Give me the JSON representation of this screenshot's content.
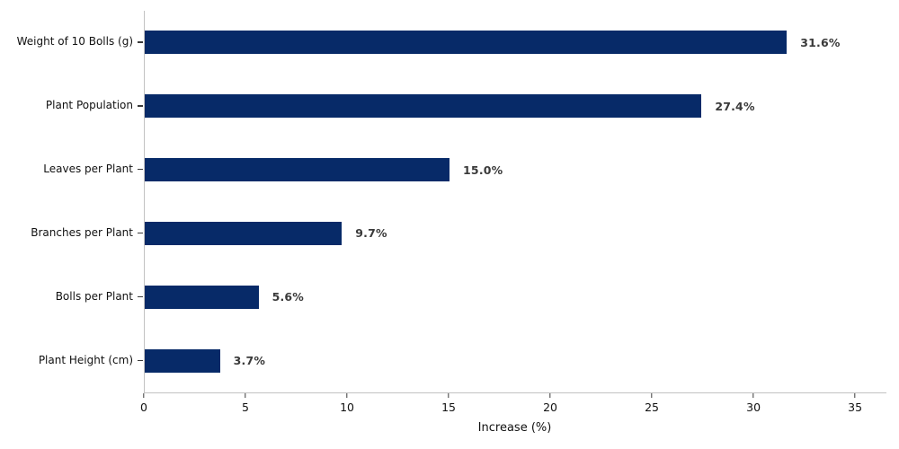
{
  "chart_data": {
    "type": "bar",
    "orientation": "horizontal",
    "title": "",
    "xlabel": "Increase (%)",
    "ylabel": "",
    "categories": [
      "Weight of 10 Bolls (g)",
      "Plant Population",
      "Leaves per Plant",
      "Branches per Plant",
      "Bolls per Plant",
      "Plant Height (cm)"
    ],
    "values": [
      31.6,
      27.4,
      15.0,
      9.7,
      5.6,
      3.7
    ],
    "value_labels": [
      "31.6%",
      "27.4%",
      "15.0%",
      "9.7%",
      "5.6%",
      "3.7%"
    ],
    "xlim": [
      0,
      36.5
    ],
    "x_ticks": [
      0,
      5,
      10,
      15,
      20,
      25,
      30,
      35
    ],
    "grid": false,
    "legend": "none",
    "bar_color": "#072a68",
    "value_label_color": "#3a3a3a",
    "spine_color": "#c2c2c2",
    "tick_color": "#3a3a3a",
    "background_color": "#ffffff"
  }
}
